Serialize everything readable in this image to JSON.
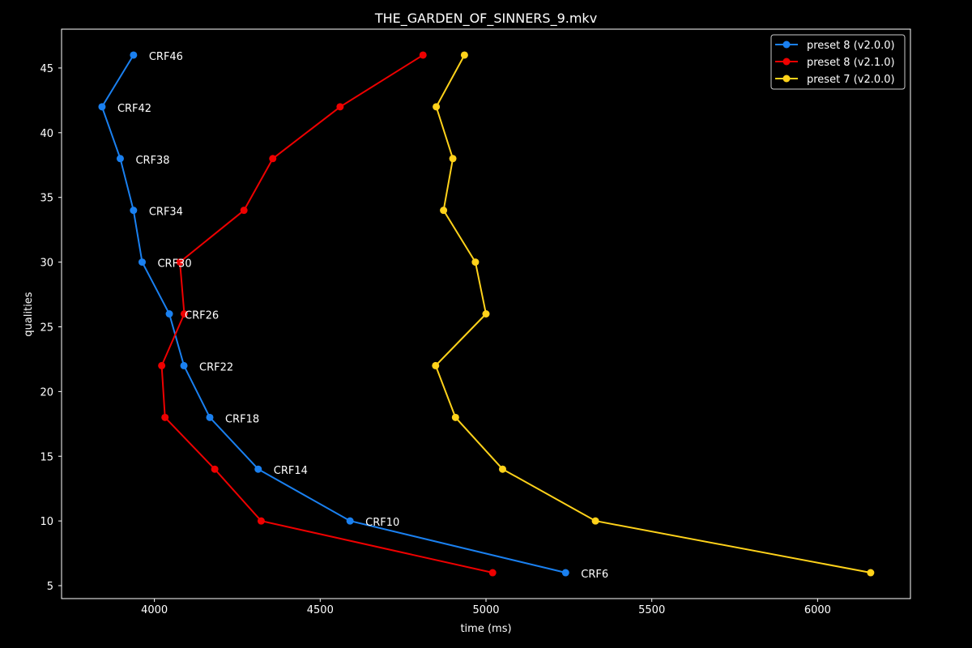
{
  "chart_data": {
    "type": "line",
    "title": "THE_GARDEN_OF_SINNERS_9.mkv",
    "xlabel": "time (ms)",
    "ylabel": "qualities",
    "xlim": [
      3720,
      6280
    ],
    "ylim": [
      4,
      48
    ],
    "xticks": [
      4000,
      4500,
      5000,
      5500,
      6000
    ],
    "yticks": [
      5,
      10,
      15,
      20,
      25,
      30,
      35,
      40,
      45
    ],
    "legend_position": "top-right",
    "background": "#000000",
    "foreground": "#ffffff",
    "series": [
      {
        "name": "preset 8 (v2.0.0)",
        "color": "#1a80f0",
        "points": [
          {
            "x": 3937,
            "y": 46,
            "label": "CRF46"
          },
          {
            "x": 3842,
            "y": 42,
            "label": "CRF42"
          },
          {
            "x": 3897,
            "y": 38,
            "label": "CRF38"
          },
          {
            "x": 3937,
            "y": 34,
            "label": "CRF34"
          },
          {
            "x": 3963,
            "y": 30,
            "label": "CRF30"
          },
          {
            "x": 4045,
            "y": 26,
            "label": "CRF26"
          },
          {
            "x": 4089,
            "y": 22,
            "label": "CRF22"
          },
          {
            "x": 4167,
            "y": 18,
            "label": "CRF18"
          },
          {
            "x": 4313,
            "y": 14,
            "label": "CRF14"
          },
          {
            "x": 4590,
            "y": 10,
            "label": "CRF10"
          },
          {
            "x": 5240,
            "y": 6,
            "label": "CRF6"
          }
        ]
      },
      {
        "name": "preset 8 (v2.1.0)",
        "color": "#ee0000",
        "points": [
          {
            "x": 4810,
            "y": 46
          },
          {
            "x": 4560,
            "y": 42
          },
          {
            "x": 4357,
            "y": 38
          },
          {
            "x": 4270,
            "y": 34
          },
          {
            "x": 4077,
            "y": 30
          },
          {
            "x": 4090,
            "y": 26
          },
          {
            "x": 4022,
            "y": 22
          },
          {
            "x": 4032,
            "y": 18
          },
          {
            "x": 4182,
            "y": 14
          },
          {
            "x": 4322,
            "y": 10
          },
          {
            "x": 5020,
            "y": 6
          }
        ]
      },
      {
        "name": "preset 7 (v2.0.0)",
        "color": "#ffd21a",
        "points": [
          {
            "x": 4935,
            "y": 46
          },
          {
            "x": 4850,
            "y": 42
          },
          {
            "x": 4900,
            "y": 38
          },
          {
            "x": 4872,
            "y": 34
          },
          {
            "x": 4968,
            "y": 30
          },
          {
            "x": 5000,
            "y": 26
          },
          {
            "x": 4848,
            "y": 22
          },
          {
            "x": 4908,
            "y": 18
          },
          {
            "x": 5050,
            "y": 14
          },
          {
            "x": 5330,
            "y": 10
          },
          {
            "x": 6160,
            "y": 6
          }
        ]
      }
    ]
  }
}
